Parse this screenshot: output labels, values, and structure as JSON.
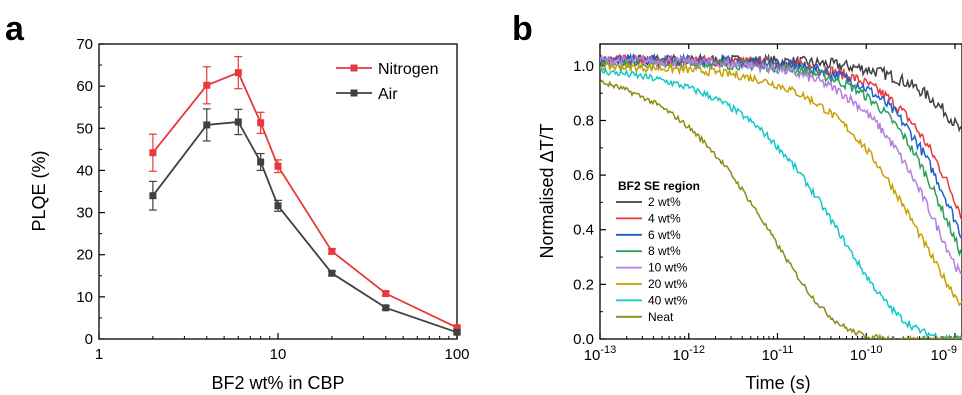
{
  "panels": {
    "a": {
      "label": "a"
    },
    "b": {
      "label": "b"
    }
  },
  "chart_data": [
    {
      "panel": "a",
      "type": "line",
      "xlabel": "BF2 wt% in CBP",
      "ylabel": "PLQE (%)",
      "xscale": "log",
      "xlim": [
        1,
        100
      ],
      "ylim": [
        0,
        70
      ],
      "xticks": [
        1,
        10,
        100
      ],
      "xtick_labels": [
        "1",
        "10",
        "100"
      ],
      "yticks": [
        0,
        10,
        20,
        30,
        40,
        50,
        60,
        70
      ],
      "ytick_labels": [
        "0",
        "10",
        "20",
        "30",
        "40",
        "50",
        "60",
        "70"
      ],
      "legend_position": "top-right",
      "x": [
        2,
        4,
        6,
        8,
        10,
        20,
        40,
        100
      ],
      "series": [
        {
          "name": "Nitrogen",
          "color": "#e8383b",
          "marker": "square",
          "values": [
            44.2,
            60.2,
            63.2,
            51.3,
            41.0,
            20.8,
            10.8,
            2.7
          ],
          "errors": [
            4.4,
            4.4,
            3.8,
            2.5,
            1.5,
            0.6,
            0.5,
            0.3
          ]
        },
        {
          "name": "Air",
          "color": "#404040",
          "marker": "square",
          "values": [
            34.0,
            50.8,
            51.5,
            42.0,
            31.6,
            15.6,
            7.4,
            1.6
          ],
          "errors": [
            3.4,
            3.8,
            3.0,
            2.0,
            1.3,
            0.5,
            0.4,
            0.3
          ]
        }
      ]
    },
    {
      "panel": "b",
      "type": "line",
      "xlabel": "Time (s)",
      "ylabel": "Normalised ΔT/T",
      "xscale": "log",
      "xlim": [
        1e-13,
        1.2e-09
      ],
      "ylim": [
        0,
        1.08
      ],
      "xticks": [
        1e-13,
        1e-12,
        1e-11,
        1e-10,
        1e-09
      ],
      "xtick_labels": [
        [
          "10",
          "-13"
        ],
        [
          "10",
          "-12"
        ],
        [
          "10",
          "-11"
        ],
        [
          "10",
          "-10"
        ],
        [
          "10",
          "-9"
        ]
      ],
      "yticks": [
        0,
        0.2,
        0.4,
        0.6,
        0.8,
        1.0
      ],
      "ytick_labels": [
        "0.0",
        "0.2",
        "0.4",
        "0.6",
        "0.8",
        "1.0"
      ],
      "legend_title": "BF2 SE region",
      "legend_position": "left",
      "series": [
        {
          "name": "2 wt%",
          "color": "#404040",
          "x50": 3e-09,
          "beta": 0.9,
          "noise": 0.022,
          "start": 1.02
        },
        {
          "name": "4 wt%",
          "color": "#e8383b",
          "x50": 1e-09,
          "beta": 0.9,
          "noise": 0.02,
          "start": 1.02
        },
        {
          "name": "6 wt%",
          "color": "#1f5fd0",
          "x50": 8e-10,
          "beta": 0.9,
          "noise": 0.02,
          "start": 1.02
        },
        {
          "name": "8 wt%",
          "color": "#2ca05a",
          "x50": 6.5e-10,
          "beta": 0.9,
          "noise": 0.018,
          "start": 1.01
        },
        {
          "name": "10 wt%",
          "color": "#b57fe0",
          "x50": 4.5e-10,
          "beta": 0.8,
          "noise": 0.018,
          "start": 1.02
        },
        {
          "name": "20 wt%",
          "color": "#c8a000",
          "x50": 2.5e-10,
          "beta": 0.7,
          "noise": 0.015,
          "start": 1.0
        },
        {
          "name": "40 wt%",
          "color": "#12c8c8",
          "x50": 3e-11,
          "beta": 0.62,
          "noise": 0.013,
          "start": 1.0
        },
        {
          "name": "Neat",
          "color": "#8c8c14",
          "x50": 5e-12,
          "beta": 0.62,
          "noise": 0.01,
          "start": 1.0
        }
      ]
    }
  ]
}
